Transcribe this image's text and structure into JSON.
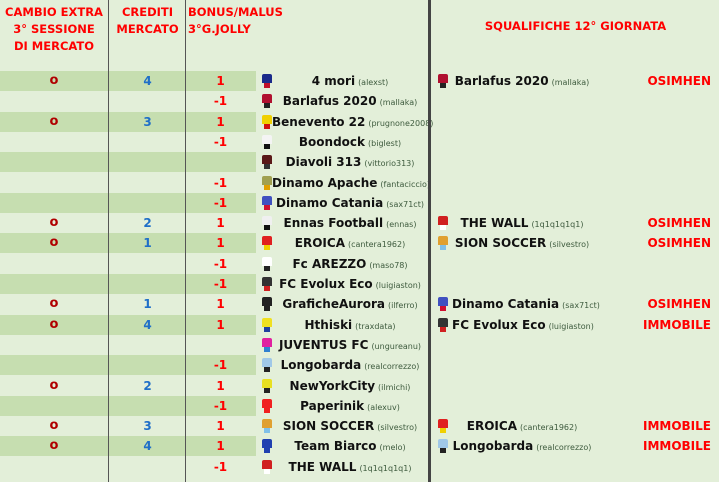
{
  "headers": {
    "cambio": [
      "CAMBIO EXTRA",
      "3° SESSIONE",
      "DI MERCATO"
    ],
    "crediti": [
      "CREDITI",
      "MERCATO"
    ],
    "bonus": [
      "BONUS/MALUS",
      "3°G.JOLLY"
    ],
    "squalifiche": "SQUALIFICHE 12° GIORNATA"
  },
  "colors": {
    "header": "#ff0000",
    "stripe": "#c6deb0",
    "background": "#e3efd9",
    "credit": "#1f6fc8",
    "cambio_mark": "#b00000"
  },
  "teams": [
    {
      "cambio": "o",
      "crediti": "4",
      "bonus": "1",
      "name": "4 mori",
      "owner": "(alexst)",
      "shirt": [
        "#1a2a8a",
        "#c0102a"
      ]
    },
    {
      "cambio": "",
      "crediti": "",
      "bonus": "-1",
      "name": "Barlafus 2020",
      "owner": "(mallaka)",
      "shirt": [
        "#b01030",
        "#222"
      ]
    },
    {
      "cambio": "o",
      "crediti": "3",
      "bonus": "1",
      "name": "Benevento 22",
      "owner": "(prugnone2008)",
      "shirt": [
        "#f0d000",
        "#d01010"
      ]
    },
    {
      "cambio": "",
      "crediti": "",
      "bonus": "-1",
      "name": "Boondock",
      "owner": "(biglest)",
      "shirt": [
        "#f4f4f4",
        "#111"
      ]
    },
    {
      "cambio": "",
      "crediti": "",
      "bonus": "",
      "name": "Diavoli 313",
      "owner": "(vittorio313)",
      "shirt": [
        "#5a1818",
        "#333"
      ]
    },
    {
      "cambio": "",
      "crediti": "",
      "bonus": "-1",
      "name": "Dinamo Apache",
      "owner": "(fantaciccio)",
      "shirt": [
        "#a0a050",
        "#e0a000"
      ]
    },
    {
      "cambio": "",
      "crediti": "",
      "bonus": "-1",
      "name": "Dinamo Catania",
      "owner": "(sax71ct)",
      "shirt": [
        "#4050c0",
        "#d01030"
      ]
    },
    {
      "cambio": "o",
      "crediti": "2",
      "bonus": "1",
      "name": "Ennas Football",
      "owner": "(ennas)",
      "shirt": [
        "#f0f0f0",
        "#111"
      ]
    },
    {
      "cambio": "o",
      "crediti": "1",
      "bonus": "1",
      "name": "EROICA",
      "owner": "(cantera1962)",
      "shirt": [
        "#e02020",
        "#f0d000"
      ]
    },
    {
      "cambio": "",
      "crediti": "",
      "bonus": "-1",
      "name": "Fc AREZZO",
      "owner": "(maso78)",
      "shirt": [
        "#fff",
        "#222"
      ]
    },
    {
      "cambio": "",
      "crediti": "",
      "bonus": "-1",
      "name": "FC Evolux Eco",
      "owner": "(luigiaston)",
      "shirt": [
        "#333",
        "#d02020"
      ]
    },
    {
      "cambio": "o",
      "crediti": "1",
      "bonus": "1",
      "name": "GraficheAurora",
      "owner": "(ilferro)",
      "shirt": [
        "#222",
        "#222"
      ]
    },
    {
      "cambio": "o",
      "crediti": "4",
      "bonus": "1",
      "name": "Hthiski",
      "owner": "(traxdata)",
      "shirt": [
        "#f0e020",
        "#2040a0"
      ]
    },
    {
      "cambio": "",
      "crediti": "",
      "bonus": "",
      "name": "JUVENTUS FC",
      "owner": "(ungureanu)",
      "shirt": [
        "#e020a0",
        "#3080d0"
      ]
    },
    {
      "cambio": "",
      "crediti": "",
      "bonus": "-1",
      "name": "Longobarda",
      "owner": "(realcorrezzo)",
      "shirt": [
        "#a0c8e8",
        "#222"
      ]
    },
    {
      "cambio": "o",
      "crediti": "2",
      "bonus": "1",
      "name": "NewYorkCity",
      "owner": "(ilmichi)",
      "shirt": [
        "#e8e020",
        "#222"
      ]
    },
    {
      "cambio": "",
      "crediti": "",
      "bonus": "-1",
      "name": "Paperinik",
      "owner": "(alexuv)",
      "shirt": [
        "#f02020",
        "#f02020"
      ]
    },
    {
      "cambio": "o",
      "crediti": "3",
      "bonus": "1",
      "name": "SION SOCCER",
      "owner": "(silvestro)",
      "shirt": [
        "#e0a030",
        "#80c0e8"
      ]
    },
    {
      "cambio": "o",
      "crediti": "4",
      "bonus": "1",
      "name": "Team Biarco",
      "owner": "(melo)",
      "shirt": [
        "#2040b0",
        "#2040b0"
      ]
    },
    {
      "cambio": "",
      "crediti": "",
      "bonus": "-1",
      "name": "THE WALL",
      "owner": "(1q1q1q1q1)",
      "shirt": [
        "#d02020",
        "#fff"
      ]
    }
  ],
  "squalifiche": [
    {
      "row": 0,
      "name": "Barlafus 2020",
      "owner": "(mallaka)",
      "player": "OSIMHEN",
      "shirt": [
        "#b01030",
        "#222"
      ]
    },
    {
      "row": 7,
      "name": "THE WALL",
      "owner": "(1q1q1q1q1)",
      "player": "OSIMHEN",
      "shirt": [
        "#d02020",
        "#fff"
      ]
    },
    {
      "row": 8,
      "name": "SION SOCCER",
      "owner": "(silvestro)",
      "player": "OSIMHEN",
      "shirt": [
        "#e0a030",
        "#80c0e8"
      ]
    },
    {
      "row": 11,
      "name": "Dinamo Catania",
      "owner": "(sax71ct)",
      "player": "OSIMHEN",
      "shirt": [
        "#4050c0",
        "#d01030"
      ]
    },
    {
      "row": 12,
      "name": "FC Evolux Eco",
      "owner": "(luigiaston)",
      "player": "IMMOBILE",
      "shirt": [
        "#333",
        "#d02020"
      ]
    },
    {
      "row": 17,
      "name": "EROICA",
      "owner": "(cantera1962)",
      "player": "IMMOBILE",
      "shirt": [
        "#e02020",
        "#f0d000"
      ]
    },
    {
      "row": 18,
      "name": "Longobarda",
      "owner": "(realcorrezzo)",
      "player": "IMMOBILE",
      "shirt": [
        "#a0c8e8",
        "#222"
      ]
    }
  ]
}
